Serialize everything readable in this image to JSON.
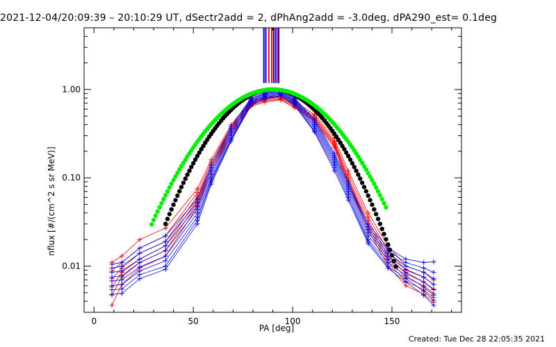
{
  "header": {
    "title": "2021-12-04/20:09:39 – 20:10:29 UT, dSectr2add = 2, dPhAng2add = -3.0deg, dPA290_est=  0.1deg"
  },
  "footer": {
    "created": "Created: Tue Dec 28 22:05:35 2021"
  },
  "chart_data": {
    "type": "line",
    "title": "2021-12-04/20:09:39 – 20:10:29 UT, dSectr2add = 2, dPhAng2add = -3.0deg, dPA290_est=  0.1deg",
    "xlabel": "PA [deg]",
    "ylabel": "nflux [#/(cm^2 s sr MeV)]",
    "xlim": [
      -5,
      185
    ],
    "ylim": [
      0.003,
      5
    ],
    "yscale": "log",
    "grid": false,
    "legend": "none",
    "xticks": [
      {
        "value": 0,
        "label": "0"
      },
      {
        "value": 50,
        "label": "50"
      },
      {
        "value": 100,
        "label": "100"
      },
      {
        "value": 150,
        "label": "150"
      }
    ],
    "yticks": [
      {
        "value": 0.01,
        "label": "0.01"
      },
      {
        "value": 0.1,
        "label": "0.10"
      },
      {
        "value": 1.0,
        "label": "1.00"
      }
    ],
    "colors": {
      "red": "#ee0000",
      "blue": "#0000dd",
      "black": "#000000",
      "green": "#00ee00"
    },
    "pa_points": [
      9,
      14,
      23,
      36,
      52,
      59,
      69,
      79,
      86,
      94,
      101,
      111,
      121,
      128,
      138,
      148,
      157,
      166,
      171
    ],
    "series": [
      {
        "color": "red",
        "values": [
          0.011,
          0.013,
          0.02,
          0.027,
          0.075,
          0.16,
          0.4,
          0.75,
          0.82,
          0.85,
          0.74,
          0.52,
          0.28,
          0.12,
          0.04,
          0.017,
          0.01,
          0.0085,
          0.007
        ]
      },
      {
        "color": "red",
        "values": [
          0.0088,
          0.011,
          0.016,
          0.022,
          0.068,
          0.15,
          0.38,
          0.72,
          0.8,
          0.83,
          0.7,
          0.5,
          0.26,
          0.11,
          0.036,
          0.015,
          0.009,
          0.0075,
          0.0062
        ]
      },
      {
        "color": "red",
        "values": [
          0.0072,
          0.0095,
          0.014,
          0.019,
          0.062,
          0.14,
          0.36,
          0.7,
          0.78,
          0.82,
          0.68,
          0.48,
          0.25,
          0.1,
          0.033,
          0.013,
          0.0082,
          0.0066,
          0.0055
        ]
      },
      {
        "color": "red",
        "values": [
          0.0058,
          0.0085,
          0.012,
          0.017,
          0.057,
          0.13,
          0.34,
          0.68,
          0.76,
          0.8,
          0.66,
          0.47,
          0.24,
          0.095,
          0.03,
          0.012,
          0.0074,
          0.006,
          0.0049
        ]
      },
      {
        "color": "red",
        "values": [
          0.0047,
          0.0075,
          0.011,
          0.015,
          0.052,
          0.12,
          0.32,
          0.66,
          0.74,
          0.78,
          0.64,
          0.45,
          0.23,
          0.09,
          0.028,
          0.011,
          0.0067,
          0.0054,
          0.0044
        ]
      },
      {
        "color": "red",
        "values": [
          0.0036,
          0.0062,
          0.0095,
          0.013,
          0.047,
          0.11,
          0.3,
          0.64,
          0.72,
          0.76,
          0.62,
          0.44,
          0.22,
          0.085,
          0.026,
          0.01,
          0.006,
          0.0048,
          0.0039
        ]
      },
      {
        "color": "blue",
        "values": [
          0.0105,
          0.011,
          0.016,
          0.022,
          0.058,
          0.14,
          0.38,
          0.8,
          0.92,
          0.98,
          0.8,
          0.46,
          0.19,
          0.09,
          0.03,
          0.016,
          0.012,
          0.011,
          0.0112
        ]
      },
      {
        "color": "blue",
        "values": [
          0.0095,
          0.01,
          0.014,
          0.019,
          0.053,
          0.13,
          0.36,
          0.78,
          0.9,
          0.96,
          0.78,
          0.44,
          0.18,
          0.085,
          0.028,
          0.015,
          0.011,
          0.0095,
          0.0085
        ]
      },
      {
        "color": "blue",
        "values": [
          0.0085,
          0.0088,
          0.012,
          0.017,
          0.048,
          0.12,
          0.34,
          0.76,
          0.88,
          0.94,
          0.76,
          0.42,
          0.17,
          0.08,
          0.026,
          0.014,
          0.01,
          0.0085,
          0.0072
        ]
      },
      {
        "color": "blue",
        "values": [
          0.0075,
          0.0078,
          0.011,
          0.015,
          0.044,
          0.11,
          0.32,
          0.74,
          0.86,
          0.92,
          0.74,
          0.4,
          0.16,
          0.075,
          0.024,
          0.013,
          0.0092,
          0.0075,
          0.0062
        ]
      },
      {
        "color": "blue",
        "values": [
          0.0068,
          0.007,
          0.0098,
          0.013,
          0.04,
          0.1,
          0.3,
          0.72,
          0.84,
          0.9,
          0.72,
          0.38,
          0.15,
          0.07,
          0.022,
          0.012,
          0.0085,
          0.0066,
          0.0054
        ]
      },
      {
        "color": "blue",
        "values": [
          0.006,
          0.0062,
          0.0088,
          0.0115,
          0.036,
          0.095,
          0.28,
          0.7,
          0.82,
          0.88,
          0.7,
          0.36,
          0.14,
          0.065,
          0.02,
          0.011,
          0.0078,
          0.0058,
          0.0047
        ]
      },
      {
        "color": "blue",
        "values": [
          0.0054,
          0.0055,
          0.008,
          0.01,
          0.033,
          0.09,
          0.27,
          0.68,
          0.8,
          0.86,
          0.68,
          0.34,
          0.13,
          0.06,
          0.019,
          0.01,
          0.0072,
          0.0052,
          0.0041
        ]
      },
      {
        "color": "blue",
        "values": [
          0.0048,
          0.0049,
          0.0072,
          0.0092,
          0.03,
          0.085,
          0.26,
          0.66,
          0.78,
          0.84,
          0.66,
          0.33,
          0.12,
          0.056,
          0.018,
          0.0095,
          0.0066,
          0.0047,
          0.0036
        ]
      }
    ],
    "fits": [
      {
        "color": "black",
        "form": "gaussian",
        "peak": 1.0,
        "center_deg": 90,
        "sigma_deg": 20.4,
        "x_range": [
          36,
          152
        ]
      },
      {
        "color": "green",
        "form": "gaussian",
        "peak": 1.0,
        "center_deg": 90,
        "sigma_deg": 23.0,
        "x_range": [
          29,
          147
        ]
      }
    ],
    "vertical_markers": [
      {
        "color": "blue",
        "x_values": [
          85.5,
          86.5,
          90.5,
          91.5,
          93.0
        ]
      },
      {
        "color": "red",
        "x_values": [
          88.0,
          89.5,
          92.5
        ]
      }
    ]
  }
}
